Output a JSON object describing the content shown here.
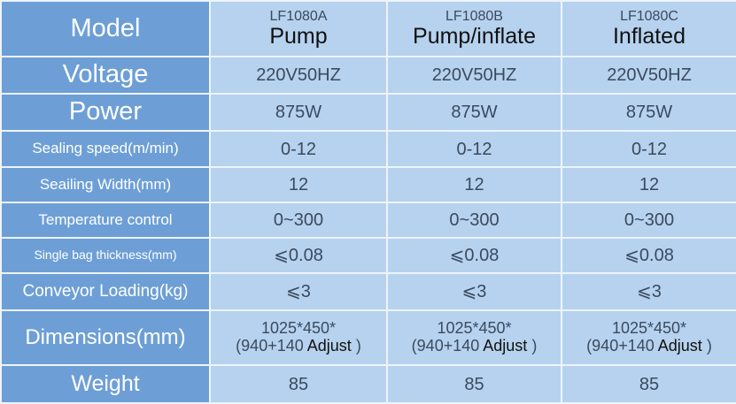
{
  "header": {
    "label": "Model",
    "models": [
      {
        "code": "LF1080A",
        "type": "Pump"
      },
      {
        "code": "LF1080B",
        "type": "Pump/inflate"
      },
      {
        "code": "LF1080C",
        "type": "Inflated"
      }
    ]
  },
  "rows": [
    {
      "label": "Voltage",
      "values": [
        "220V50HZ",
        "220V50HZ",
        "220V50HZ"
      ]
    },
    {
      "label": "Power",
      "values": [
        "875W",
        "875W",
        "875W"
      ]
    },
    {
      "label": "Sealing speed(m/min)",
      "values": [
        "0-12",
        "0-12",
        "0-12"
      ]
    },
    {
      "label": "Seailing Width(mm)",
      "values": [
        "12",
        "12",
        "12"
      ]
    },
    {
      "label": "Temperature control",
      "values": [
        "0~300",
        "0~300",
        "0~300"
      ]
    },
    {
      "label": "Single bag thickness(mm)",
      "values": [
        "⩽0.08",
        "⩽0.08",
        "⩽0.08"
      ]
    },
    {
      "label": "Conveyor Loading(kg)",
      "values": [
        "⩽3",
        "⩽3",
        "⩽3"
      ]
    }
  ],
  "dimensions": {
    "label": "Dimensions(mm)",
    "line1": "1025*450*",
    "line2_prefix": "(940+140",
    "line2_adjust": "Adjust",
    "line2_suffix": ")"
  },
  "weight": {
    "label": "Weight",
    "values": [
      "85",
      "85",
      "85"
    ]
  },
  "colors": {
    "label_bg": "#6d9fd6",
    "cell_bg": "#b6d2ee",
    "border": "#eef4fb"
  }
}
